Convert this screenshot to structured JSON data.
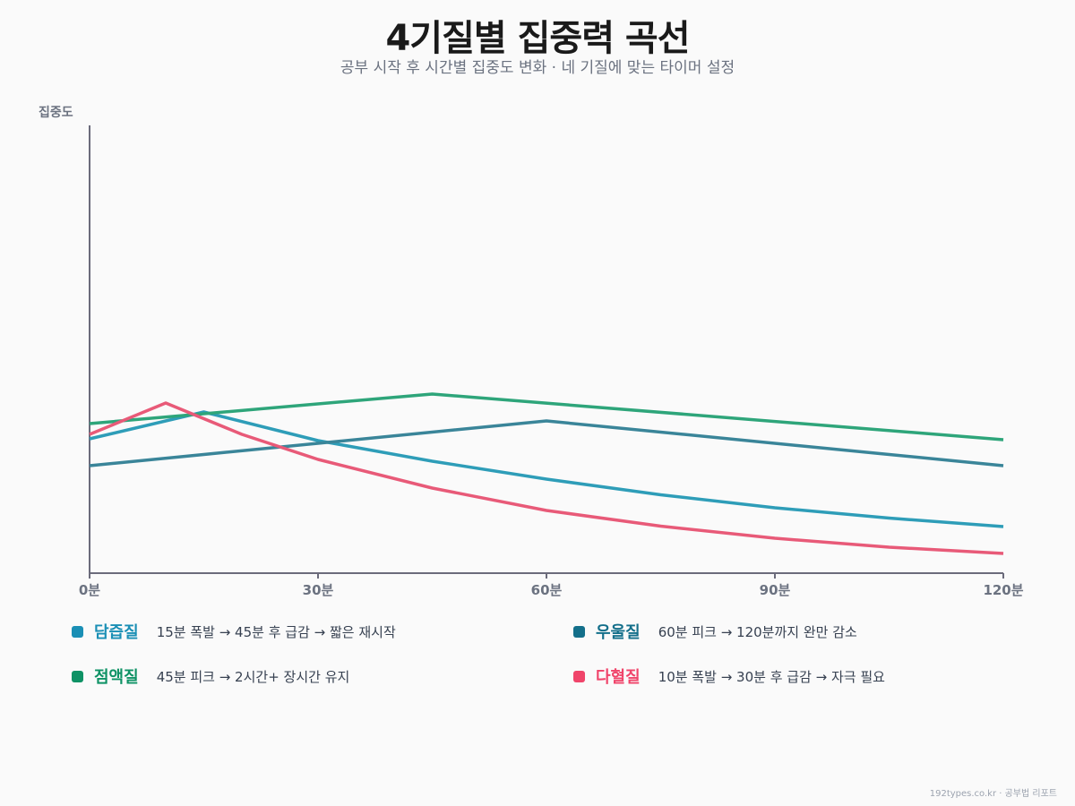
{
  "title": "4기질별 집중력 곡선",
  "subtitle": "공부 시작 후 시간별 집중도 변화 · 네 기질에 맞는 타이머 설정",
  "footer": "192types.co.kr · 공부법 리포트",
  "chart_data": {
    "type": "line",
    "title": "4기질별 집중력 곡선",
    "ylabel": "집중도",
    "xlabel": "",
    "xlim": [
      0,
      120
    ],
    "ylim": [
      0,
      100
    ],
    "x_ticks": [
      0,
      30,
      60,
      90,
      120
    ],
    "x_tick_labels": [
      "0분",
      "30분",
      "60분",
      "90분",
      "120분"
    ],
    "y_ticks_shown": false,
    "grid": false,
    "legend_position": "bottom",
    "series": [
      {
        "name": "담즙질",
        "description": "15분 폭발 → 45분 후 급감 → 짧은 재시작",
        "color": "#2e9db8",
        "legend_color": "#1a8fb5",
        "x": [
          0,
          15,
          30,
          45,
          60,
          75,
          90,
          105,
          120
        ],
        "y": [
          30,
          36,
          29.6,
          25,
          21,
          17.5,
          14.6,
          12.3,
          10.4
        ]
      },
      {
        "name": "우울질",
        "description": "60분 피크 → 120분까지 완만 감소",
        "color": "#3a8599",
        "legend_color": "#136f8a",
        "x": [
          0,
          60,
          120
        ],
        "y": [
          24,
          34,
          24
        ]
      },
      {
        "name": "점액질",
        "description": "45분 피크 → 2시간+ 장시간 유지",
        "color": "#2ea57a",
        "legend_color": "#0e9265",
        "x": [
          0,
          45,
          120
        ],
        "y": [
          33.4,
          40,
          29.8
        ]
      },
      {
        "name": "다혈질",
        "description": "10분 폭발 → 30분 후 급감 → 자극 필요",
        "color": "#e85a78",
        "legend_color": "#f0446a",
        "x": [
          0,
          10,
          20,
          30,
          45,
          60,
          75,
          90,
          105,
          120
        ],
        "y": [
          31,
          38,
          31,
          25.4,
          19,
          14,
          10.5,
          7.8,
          5.8,
          4.4
        ]
      }
    ]
  }
}
